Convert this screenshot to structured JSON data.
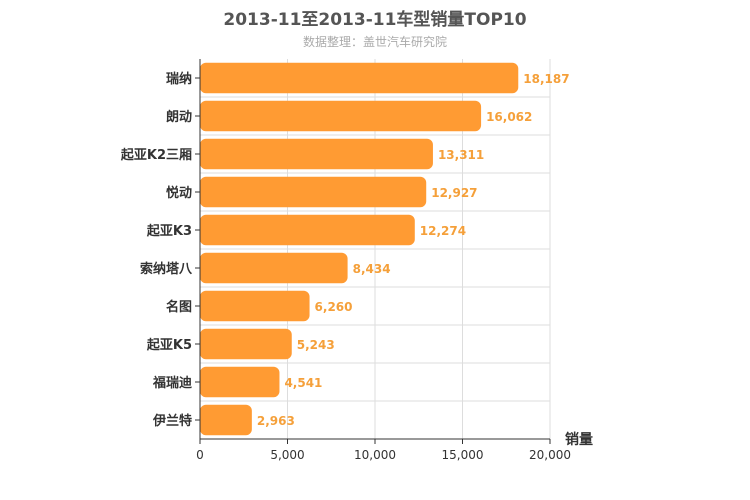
{
  "chart_data": {
    "type": "bar",
    "orientation": "horizontal",
    "title": "2013-11至2013-11车型销量TOP10",
    "subtitle": "数据整理：盖世汽车研究院",
    "categories": [
      "瑞纳",
      "朗动",
      "起亚K2三厢",
      "悦动",
      "起亚K3",
      "索纳塔八",
      "名图",
      "起亚K5",
      "福瑞迪",
      "伊兰特"
    ],
    "values": [
      18187,
      16062,
      13311,
      12927,
      12274,
      8434,
      6260,
      5243,
      4541,
      2963
    ],
    "value_labels": [
      "18,187",
      "16,062",
      "13,311",
      "12,927",
      "12,274",
      "8,434",
      "6,260",
      "5,243",
      "4,541",
      "2,963"
    ],
    "xlabel": "销量",
    "ylabel": "",
    "xlim": [
      0,
      20000
    ],
    "xticks": [
      0,
      5000,
      10000,
      15000,
      20000
    ],
    "xtick_labels": [
      "0",
      "5,000",
      "10,000",
      "15,000",
      "20,000"
    ],
    "grid": true,
    "bar_color": "#ff9b33",
    "label_color": "#f5a03a"
  }
}
